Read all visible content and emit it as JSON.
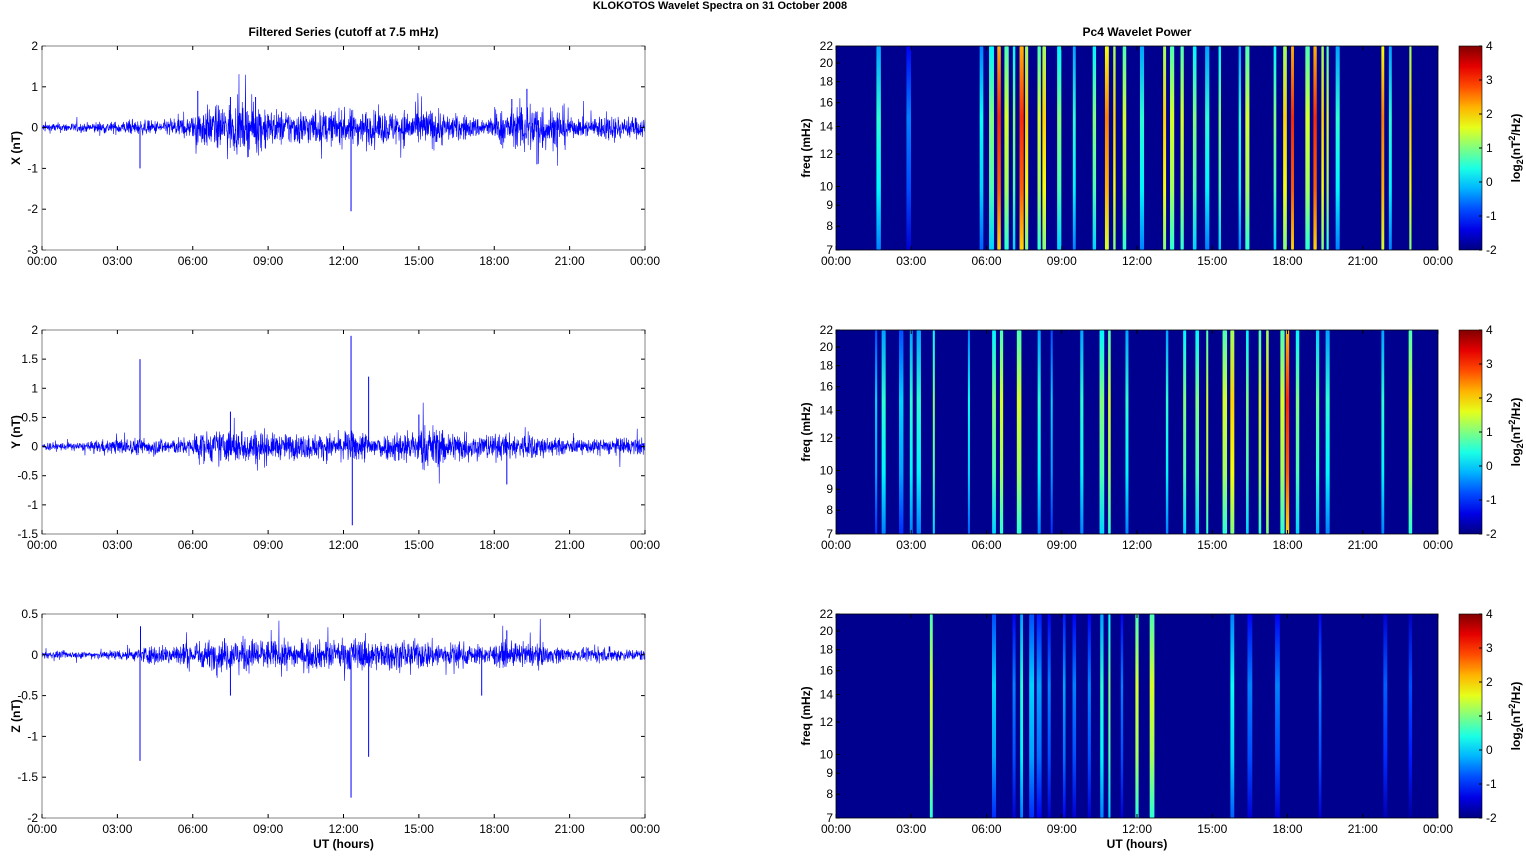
{
  "figure_title": "KLOKOTOS Wavelet Spectra on 31 October   2008",
  "chart_data": [
    {
      "type": "line",
      "panel": "X",
      "title": "Filtered Series (cutoff at 7.5 mHz)",
      "xlabel": "",
      "ylabel": "X (nT)",
      "xlim": [
        0,
        24
      ],
      "ylim": [
        -3,
        2
      ],
      "xticks": [
        0,
        3,
        6,
        9,
        12,
        15,
        18,
        21,
        24
      ],
      "xticklabels": [
        "00:00",
        "03:00",
        "06:00",
        "09:00",
        "12:00",
        "15:00",
        "18:00",
        "21:00",
        "00:00"
      ],
      "yticks": [
        -3,
        -2,
        -1,
        0,
        1,
        2
      ],
      "yticklabels": [
        "-3",
        "-2",
        "-1",
        "0",
        "1",
        "2"
      ],
      "hourly_amplitude": [
        0.08,
        0.08,
        0.1,
        0.12,
        0.12,
        0.18,
        0.35,
        0.4,
        0.42,
        0.3,
        0.3,
        0.28,
        0.3,
        0.28,
        0.3,
        0.32,
        0.22,
        0.18,
        0.3,
        0.45,
        0.35,
        0.15,
        0.22,
        0.18
      ],
      "spikes": [
        {
          "t": 3.9,
          "v": -1.0
        },
        {
          "t": 6.2,
          "v": 0.9
        },
        {
          "t": 7.5,
          "v": 0.75
        },
        {
          "t": 8.5,
          "v": 0.75
        },
        {
          "t": 12.3,
          "v": -2.05
        },
        {
          "t": 18.7,
          "v": 0.7
        },
        {
          "t": 19.3,
          "v": 0.95
        },
        {
          "t": 19.7,
          "v": -0.9
        }
      ]
    },
    {
      "type": "line",
      "panel": "Y",
      "title": "",
      "xlabel": "",
      "ylabel": "Y (nT)",
      "xlim": [
        0,
        24
      ],
      "ylim": [
        -1.5,
        2
      ],
      "xticks": [
        0,
        3,
        6,
        9,
        12,
        15,
        18,
        21,
        24
      ],
      "xticklabels": [
        "00:00",
        "03:00",
        "06:00",
        "09:00",
        "12:00",
        "15:00",
        "18:00",
        "21:00",
        "00:00"
      ],
      "yticks": [
        -1.5,
        -1,
        -0.5,
        0,
        0.5,
        1,
        1.5,
        2
      ],
      "yticklabels": [
        "-1.5",
        "-1",
        "-0.5",
        "0",
        "0.5",
        "1",
        "1.5",
        "2"
      ],
      "hourly_amplitude": [
        0.05,
        0.05,
        0.08,
        0.1,
        0.1,
        0.1,
        0.18,
        0.2,
        0.2,
        0.15,
        0.15,
        0.15,
        0.18,
        0.15,
        0.2,
        0.25,
        0.18,
        0.15,
        0.15,
        0.15,
        0.1,
        0.08,
        0.1,
        0.1
      ],
      "spikes": [
        {
          "t": 3.9,
          "v": 1.5
        },
        {
          "t": 7.5,
          "v": 0.6
        },
        {
          "t": 12.3,
          "v": 1.9
        },
        {
          "t": 12.35,
          "v": -1.35
        },
        {
          "t": 13.0,
          "v": 1.2
        },
        {
          "t": 15.0,
          "v": 0.55
        },
        {
          "t": 18.5,
          "v": -0.65
        }
      ]
    },
    {
      "type": "line",
      "panel": "Z",
      "title": "",
      "xlabel": "UT (hours)",
      "ylabel": "Z (nT)",
      "xlim": [
        0,
        24
      ],
      "ylim": [
        -2,
        0.5
      ],
      "xticks": [
        0,
        3,
        6,
        9,
        12,
        15,
        18,
        21,
        24
      ],
      "xticklabels": [
        "00:00",
        "03:00",
        "06:00",
        "09:00",
        "12:00",
        "15:00",
        "18:00",
        "21:00",
        "00:00"
      ],
      "yticks": [
        -2,
        -1.5,
        -1,
        -0.5,
        0,
        0.5
      ],
      "yticklabels": [
        "-2",
        "-1.5",
        "-1",
        "-0.5",
        "0",
        "0.5"
      ],
      "hourly_amplitude": [
        0.03,
        0.03,
        0.04,
        0.05,
        0.08,
        0.1,
        0.12,
        0.14,
        0.14,
        0.12,
        0.12,
        0.12,
        0.14,
        0.12,
        0.12,
        0.12,
        0.1,
        0.08,
        0.1,
        0.1,
        0.07,
        0.05,
        0.06,
        0.05
      ],
      "spikes": [
        {
          "t": 3.9,
          "v": -1.3
        },
        {
          "t": 3.92,
          "v": 0.35
        },
        {
          "t": 7.5,
          "v": -0.5
        },
        {
          "t": 12.3,
          "v": -1.75
        },
        {
          "t": 13.0,
          "v": -1.25
        },
        {
          "t": 17.5,
          "v": -0.5
        },
        {
          "t": 18.5,
          "v": 0.3
        }
      ]
    },
    {
      "type": "heatmap",
      "panel": "X",
      "title": "Pc4 Wavelet Power",
      "xlabel": "",
      "ylabel": "freq (mHz)",
      "xlim": [
        0,
        24
      ],
      "ylim": [
        7,
        22
      ],
      "yscale": "log",
      "xticklabels": [
        "00:00",
        "03:00",
        "06:00",
        "09:00",
        "12:00",
        "15:00",
        "18:00",
        "21:00",
        "00:00"
      ],
      "yticks": [
        7,
        8,
        9,
        10,
        12,
        14,
        16,
        18,
        20,
        22
      ],
      "clim": [
        -2,
        4
      ],
      "cticks": [
        -2,
        -1,
        0,
        1,
        2,
        3,
        4
      ],
      "clabel": "log2(nT2/Hz)",
      "events": [
        [
          1.7,
          0.5
        ],
        [
          2.9,
          -0.5
        ],
        [
          5.8,
          0.3
        ],
        [
          6.2,
          1
        ],
        [
          6.5,
          3
        ],
        [
          6.8,
          1.5
        ],
        [
          7.1,
          1
        ],
        [
          7.4,
          3
        ],
        [
          7.6,
          2
        ],
        [
          8.1,
          1.5
        ],
        [
          8.3,
          2
        ],
        [
          8.9,
          1
        ],
        [
          9.5,
          0.5
        ],
        [
          10.3,
          1
        ],
        [
          10.8,
          2.5
        ],
        [
          11.1,
          2
        ],
        [
          11.5,
          1.5
        ],
        [
          12.2,
          0.5
        ],
        [
          13.1,
          2
        ],
        [
          13.4,
          1.5
        ],
        [
          13.8,
          1.5
        ],
        [
          14.3,
          1
        ],
        [
          14.8,
          0.5
        ],
        [
          15.3,
          1
        ],
        [
          16.1,
          0.5
        ],
        [
          16.4,
          1.5
        ],
        [
          17.5,
          1
        ],
        [
          17.9,
          2
        ],
        [
          18.2,
          3
        ],
        [
          18.8,
          1.5
        ],
        [
          19.1,
          3
        ],
        [
          19.4,
          2
        ],
        [
          19.6,
          1.5
        ],
        [
          20.0,
          0.5
        ],
        [
          21.8,
          2.5
        ],
        [
          22.1,
          0.5
        ],
        [
          22.9,
          2
        ]
      ]
    },
    {
      "type": "heatmap",
      "panel": "Y",
      "title": "",
      "xlabel": "",
      "ylabel": "freq (mHz)",
      "xlim": [
        0,
        24
      ],
      "ylim": [
        7,
        22
      ],
      "yscale": "log",
      "xticklabels": [
        "00:00",
        "03:00",
        "06:00",
        "09:00",
        "12:00",
        "15:00",
        "18:00",
        "21:00",
        "00:00"
      ],
      "yticks": [
        7,
        8,
        9,
        10,
        12,
        14,
        16,
        18,
        20,
        22
      ],
      "clim": [
        -2,
        4
      ],
      "cticks": [
        -2,
        -1,
        0,
        1,
        2,
        3,
        4
      ],
      "clabel": "log2(nT2/Hz)",
      "events": [
        [
          1.6,
          0
        ],
        [
          1.9,
          0.5
        ],
        [
          2.6,
          0
        ],
        [
          3.0,
          0.5
        ],
        [
          3.3,
          0.5
        ],
        [
          3.9,
          1
        ],
        [
          5.3,
          0.3
        ],
        [
          6.3,
          1
        ],
        [
          6.6,
          1.5
        ],
        [
          7.3,
          1.5
        ],
        [
          8.1,
          0.5
        ],
        [
          8.6,
          0
        ],
        [
          9.8,
          0.5
        ],
        [
          10.6,
          1
        ],
        [
          10.9,
          1.5
        ],
        [
          11.6,
          0.5
        ],
        [
          13.2,
          0.5
        ],
        [
          13.9,
          1
        ],
        [
          14.4,
          1
        ],
        [
          14.8,
          1.5
        ],
        [
          15.5,
          1.5
        ],
        [
          15.8,
          2
        ],
        [
          16.4,
          1
        ],
        [
          16.9,
          1.5
        ],
        [
          17.2,
          2
        ],
        [
          17.8,
          1.5
        ],
        [
          18.0,
          3
        ],
        [
          18.4,
          1
        ],
        [
          19.2,
          0.8
        ],
        [
          19.6,
          0.5
        ],
        [
          21.8,
          0.5
        ],
        [
          22.9,
          1.5
        ]
      ]
    },
    {
      "type": "heatmap",
      "panel": "Z",
      "title": "",
      "xlabel": "UT (hours)",
      "ylabel": "freq (mHz)",
      "xlim": [
        0,
        24
      ],
      "ylim": [
        7,
        22
      ],
      "yscale": "log",
      "xticklabels": [
        "00:00",
        "03:00",
        "06:00",
        "09:00",
        "12:00",
        "15:00",
        "18:00",
        "21:00",
        "00:00"
      ],
      "yticks": [
        7,
        8,
        9,
        10,
        12,
        14,
        16,
        18,
        20,
        22
      ],
      "clim": [
        -2,
        4
      ],
      "cticks": [
        -2,
        -1,
        0,
        1,
        2,
        3,
        4
      ],
      "clabel": "log2(nT2/Hz)",
      "events": [
        [
          3.8,
          1.5
        ],
        [
          6.3,
          0
        ],
        [
          7.1,
          -0.5
        ],
        [
          7.4,
          0.5
        ],
        [
          7.8,
          0
        ],
        [
          8.1,
          -0.3
        ],
        [
          8.5,
          -0.5
        ],
        [
          9.1,
          -0.3
        ],
        [
          9.5,
          -0.5
        ],
        [
          10.1,
          -0.5
        ],
        [
          10.6,
          0.5
        ],
        [
          10.9,
          1
        ],
        [
          11.4,
          -0.5
        ],
        [
          12.0,
          1.5
        ],
        [
          12.6,
          1.5
        ],
        [
          15.8,
          0.3
        ],
        [
          16.5,
          -0.5
        ],
        [
          17.6,
          -0.5
        ],
        [
          19.3,
          -0.5
        ],
        [
          21.9,
          -0.7
        ],
        [
          22.9,
          -0.8
        ]
      ]
    }
  ]
}
